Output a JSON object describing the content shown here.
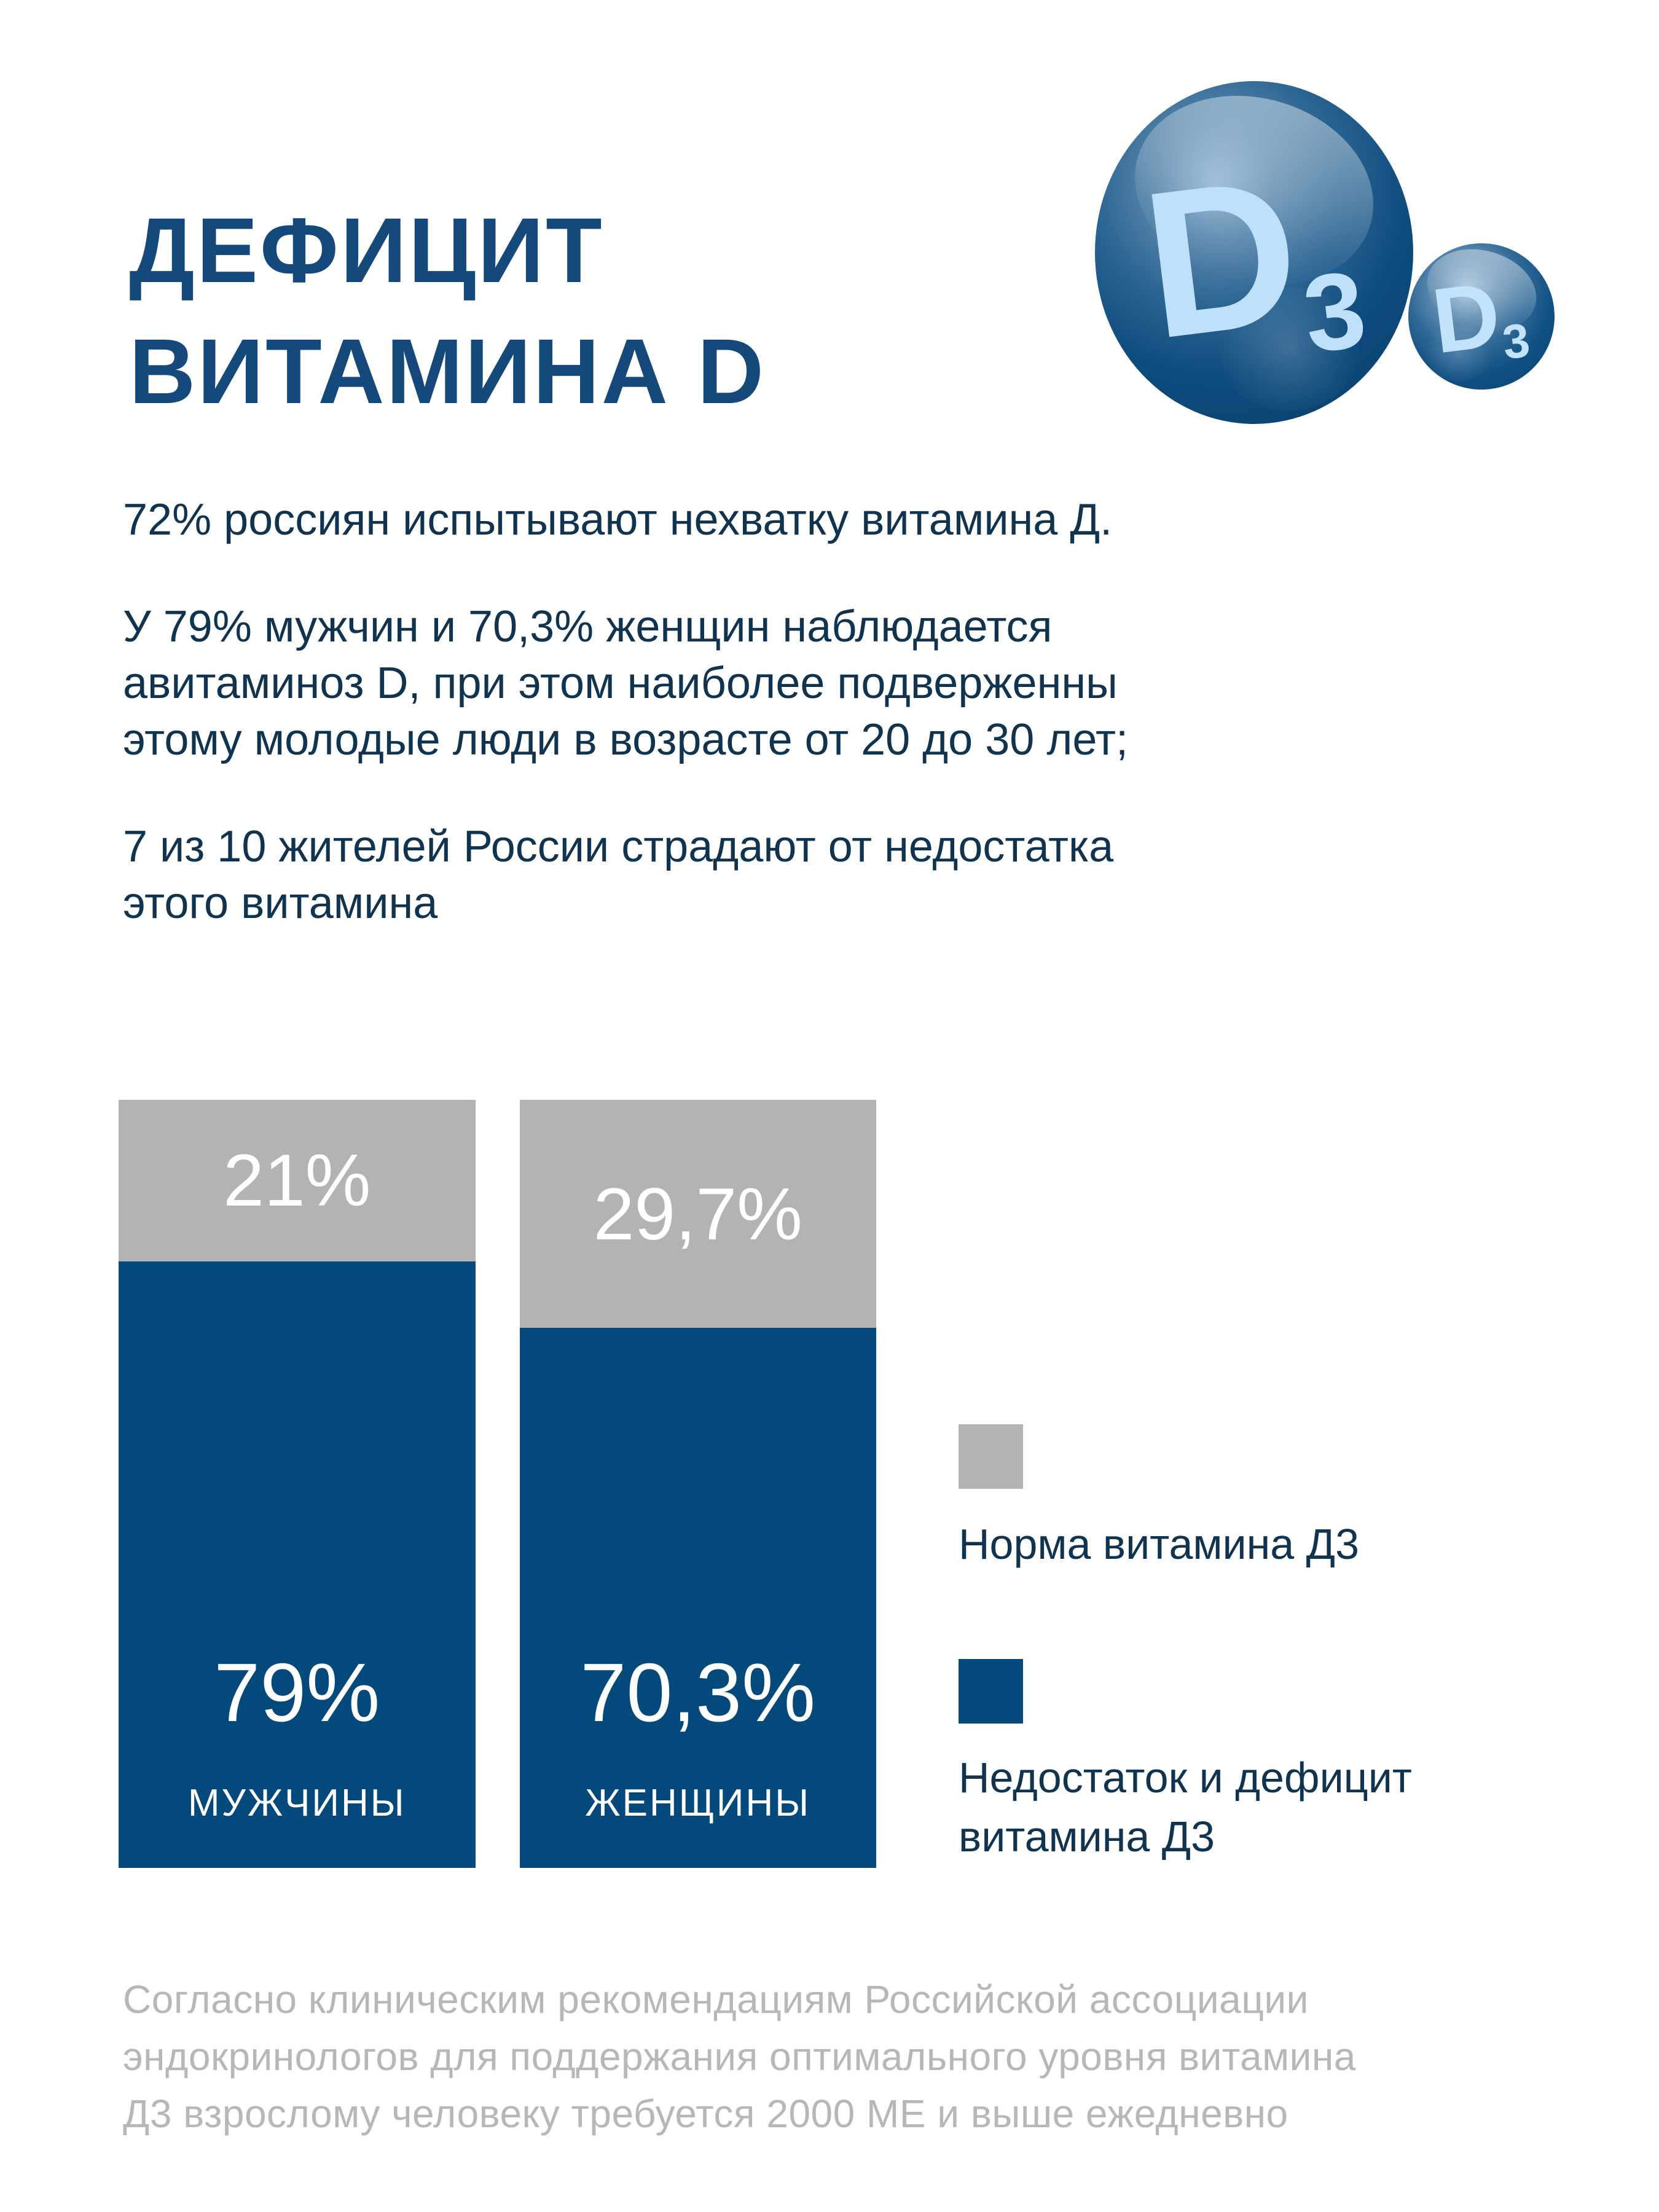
{
  "title": {
    "lines": [
      "ДЕФИЦИТ",
      "ВИТАМИНА D"
    ]
  },
  "logo": {
    "letter": "D",
    "subscript": "3"
  },
  "paragraphs": {
    "p1": {
      "lines": [
        "72% россиян испытывают нехватку витамина Д."
      ]
    },
    "p2": {
      "lines": [
        "У 79% мужчин и 70,3% женщин наблюдается",
        "авитаминоз D, при этом наиболее подверженны",
        "этому молодые люди в возрасте от 20 до 30 лет;"
      ]
    },
    "p3": {
      "lines": [
        "7 из 10 жителей России страдают от недостатка",
        "этого витамина"
      ]
    }
  },
  "chart_data": {
    "type": "bar",
    "subtype": "stacked-percentage",
    "categories": [
      "МУЖЧИНЫ",
      "ЖЕНЩИНЫ"
    ],
    "series": [
      {
        "name": "Норма витамина Д3",
        "color": "#B3B3B3",
        "values": [
          21,
          29.7
        ],
        "labels": [
          "21%",
          "29,7%"
        ]
      },
      {
        "name": "Недостаток и дефицит витамина Д3",
        "color": "#04497B",
        "values": [
          79,
          70.3
        ],
        "labels": [
          "79%",
          "70,3%"
        ]
      }
    ],
    "ylim": [
      0,
      100
    ],
    "grid": false,
    "legend_position": "right",
    "value_format": "percent, comma decimal separator"
  },
  "legend": {
    "items": [
      {
        "label_lines": [
          "Норма витамина Д3"
        ],
        "color": "#B3B3B3"
      },
      {
        "label_lines": [
          "Недостаток и дефицит",
          "витамина Д3"
        ],
        "color": "#04497B"
      }
    ]
  },
  "footer": {
    "lines": [
      "Согласно клиническим рекомендациям Российской ассоциации",
      "эндокринологов для поддержания оптимального уровня витамина",
      "Д3 взрослому человеку требуется 2000 МЕ и выше ежедневно"
    ]
  },
  "colors": {
    "background": "#FFFFFF",
    "title_blue": "#15497B",
    "body_navy": "#103450",
    "bar_blue": "#04497B",
    "bar_gray": "#B3B3B3",
    "bar_label_white": "#FFFFFF",
    "footer_gray": "#B7B7B7",
    "sphere_letter_light_blue": "#BFE0FB"
  }
}
